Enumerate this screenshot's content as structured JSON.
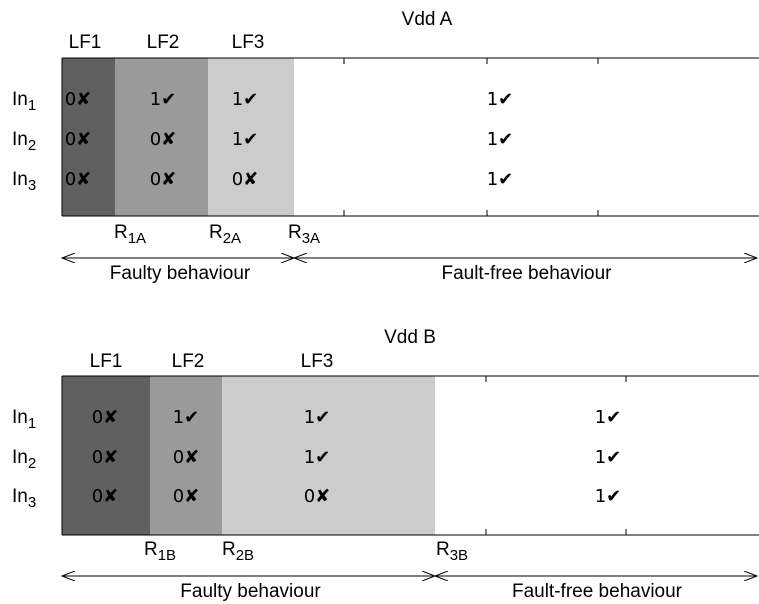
{
  "panels": [
    {
      "title": "Vdd A",
      "regions": [
        "LF1",
        "LF2",
        "LF3"
      ],
      "rows": [
        {
          "base": "In",
          "sub": "1",
          "cells": [
            "0✘",
            "1✔",
            "1✔",
            "1✔"
          ]
        },
        {
          "base": "In",
          "sub": "2",
          "cells": [
            "0✘",
            "0✘",
            "1✔",
            "1✔"
          ]
        },
        {
          "base": "In",
          "sub": "3",
          "cells": [
            "0✘",
            "0✘",
            "0✘",
            "1✔"
          ]
        }
      ],
      "resistors": [
        {
          "base": "R",
          "sub": "1A"
        },
        {
          "base": "R",
          "sub": "2A"
        },
        {
          "base": "R",
          "sub": "3A"
        }
      ],
      "behaviours": [
        "Faulty behaviour",
        "Fault-free behaviour"
      ]
    },
    {
      "title": "Vdd B",
      "regions": [
        "LF1",
        "LF2",
        "LF3"
      ],
      "rows": [
        {
          "base": "In",
          "sub": "1",
          "cells": [
            "0✘",
            "1✔",
            "1✔",
            "1✔"
          ]
        },
        {
          "base": "In",
          "sub": "2",
          "cells": [
            "0✘",
            "0✘",
            "1✔",
            "1✔"
          ]
        },
        {
          "base": "In",
          "sub": "3",
          "cells": [
            "0✘",
            "0✘",
            "0✘",
            "1✔"
          ]
        }
      ],
      "resistors": [
        {
          "base": "R",
          "sub": "1B"
        },
        {
          "base": "R",
          "sub": "2B"
        },
        {
          "base": "R",
          "sub": "3B"
        }
      ],
      "behaviours": [
        "Faulty behaviour",
        "Fault-free behaviour"
      ]
    }
  ]
}
